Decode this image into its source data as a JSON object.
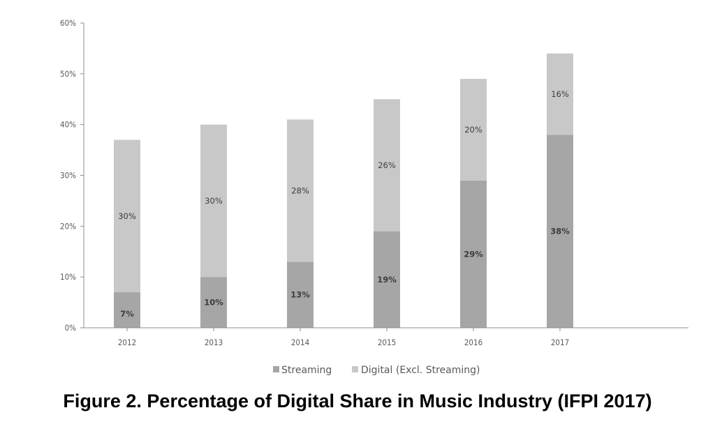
{
  "caption": "Figure 2. Percentage of Digital Share in Music Industry (IFPI 2017)",
  "colors": {
    "streaming": "#a6a6a6",
    "digital": "#c8c8c8",
    "axis": "#8c8c8c",
    "text": "#595959"
  },
  "chart_data": {
    "type": "bar",
    "stacked": true,
    "title": "",
    "xlabel": "",
    "ylabel": "",
    "categories": [
      "2012",
      "2013",
      "2014",
      "2015",
      "2016",
      "2017"
    ],
    "series": [
      {
        "name": "Streaming",
        "values": [
          7,
          10,
          13,
          19,
          29,
          38
        ],
        "labels": [
          "7%",
          "10%",
          "13%",
          "19%",
          "29%",
          "38%"
        ]
      },
      {
        "name": "Digital (Excl. Streaming)",
        "values": [
          30,
          30,
          28,
          26,
          20,
          16
        ],
        "labels": [
          "30%",
          "30%",
          "28%",
          "26%",
          "20%",
          "16%"
        ]
      }
    ],
    "ylim": [
      0,
      60
    ],
    "yticks": [
      0,
      10,
      20,
      30,
      40,
      50,
      60
    ],
    "ytick_labels": [
      "0%",
      "10%",
      "20%",
      "30%",
      "40%",
      "50%",
      "60%"
    ],
    "grid": false,
    "legend": "bottom"
  }
}
